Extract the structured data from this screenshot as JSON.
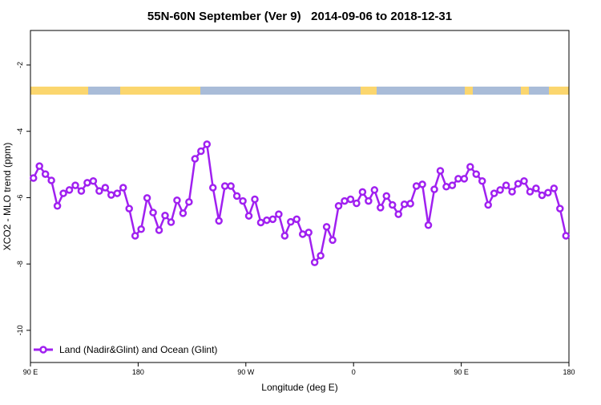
{
  "chart_data": {
    "type": "line",
    "title": "55N-60N September (Ver 9)   2014-09-06 to 2018-12-31",
    "x_label": "Longitude (deg E)",
    "y_label": "XCO2 - MLO trend (ppm)",
    "xlim": [
      90,
      540
    ],
    "xticks": [
      {
        "value": 90,
        "label": "90 E"
      },
      180,
      {
        "value": 270,
        "label": "90 W"
      },
      {
        "value": 360,
        "label": "0"
      },
      {
        "value": 450,
        "label": "90 E"
      },
      {
        "value": 540,
        "label": "180"
      }
    ],
    "ylim": [
      -10.97,
      -0.96
    ],
    "yticks": [
      -10,
      -8,
      -6,
      -4,
      -2
    ],
    "x": [
      92.5,
      97.5,
      102.5,
      107.5,
      112.5,
      117.5,
      122.5,
      127.5,
      132.5,
      137.5,
      142.5,
      147.5,
      152.5,
      157.5,
      162.5,
      167.5,
      172.5,
      177.5,
      182.5,
      187.5,
      192.5,
      197.5,
      202.5,
      207.5,
      212.5,
      217.5,
      222.5,
      227.5,
      232.5,
      237.5,
      242.5,
      247.5,
      252.5,
      257.5,
      262.5,
      267.5,
      272.5,
      277.5,
      282.5,
      287.5,
      292.5,
      297.5,
      302.5,
      307.5,
      312.5,
      317.5,
      322.5,
      327.5,
      332.5,
      337.5,
      342.5,
      347.5,
      352.5,
      357.5,
      362.5,
      367.5,
      372.5,
      377.5,
      382.5,
      387.5,
      392.5,
      397.5,
      402.5,
      407.5,
      412.5,
      417.5,
      422.5,
      427.5,
      432.5,
      437.5,
      442.5,
      447.5,
      452.5,
      457.5,
      462.5,
      467.5,
      472.5,
      477.5,
      482.5,
      487.5,
      492.5,
      497.5,
      502.5,
      507.5,
      512.5,
      517.5,
      522.5,
      527.5,
      532.5,
      537.5
    ],
    "series": [
      {
        "name": "Land (Nadir&Glint) and Ocean (Glint)",
        "color": "#a020f0",
        "values": [
          -5.41,
          -5.05,
          -5.29,
          -5.48,
          -6.25,
          -5.87,
          -5.77,
          -5.63,
          -5.8,
          -5.55,
          -5.5,
          -5.8,
          -5.7,
          -5.92,
          -5.87,
          -5.7,
          -6.33,
          -7.15,
          -6.95,
          -6.01,
          -6.45,
          -6.98,
          -6.54,
          -6.74,
          -6.08,
          -6.47,
          -6.13,
          -4.83,
          -4.6,
          -4.39,
          -5.7,
          -6.7,
          -5.65,
          -5.65,
          -5.95,
          -6.1,
          -6.55,
          -6.05,
          -6.75,
          -6.68,
          -6.65,
          -6.5,
          -7.15,
          -6.73,
          -6.65,
          -7.1,
          -7.05,
          -7.95,
          -7.75,
          -6.88,
          -7.28,
          -6.25,
          -6.1,
          -6.05,
          -6.17,
          -5.83,
          -6.1,
          -5.77,
          -6.3,
          -5.95,
          -6.22,
          -6.5,
          -6.2,
          -6.18,
          -5.65,
          -5.6,
          -6.83,
          -5.75,
          -5.19,
          -5.67,
          -5.63,
          -5.43,
          -5.43,
          -5.07,
          -5.29,
          -5.5,
          -6.22,
          -5.87,
          -5.77,
          -5.63,
          -5.82,
          -5.58,
          -5.5,
          -5.82,
          -5.72,
          -5.93,
          -5.85,
          -5.72,
          -6.33,
          -7.15
        ]
      }
    ]
  }
}
